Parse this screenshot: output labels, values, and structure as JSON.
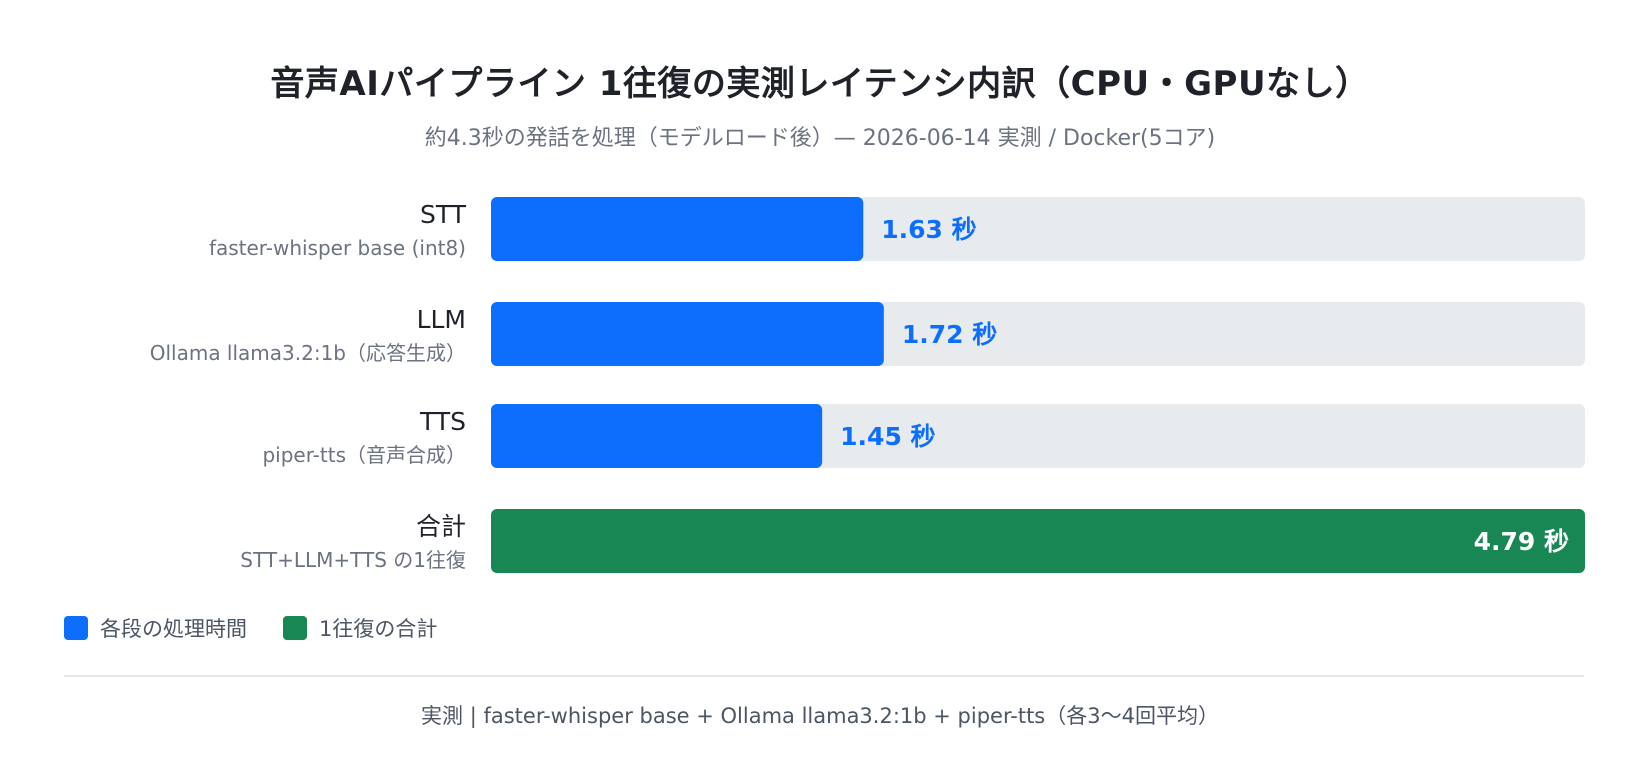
{
  "chart_data": {
    "type": "bar",
    "orientation": "horizontal",
    "title": "音声AIパイプライン 1往復の実測レイテンシ内訳（CPU・GPUなし）",
    "subtitle": "約4.3秒の発話を処理（モデルロード後）— 2026-06-14 実測 / Docker(5コア)",
    "xlim": [
      0,
      4.79
    ],
    "grid": false,
    "legend_position": "bottom-left",
    "unit": "秒",
    "categories": [
      {
        "label": "STT",
        "sublabel": "faster-whisper base (int8)"
      },
      {
        "label": "LLM",
        "sublabel": "Ollama llama3.2:1b（応答生成）"
      },
      {
        "label": "TTS",
        "sublabel": "piper-tts（音声合成）"
      },
      {
        "label": "合計",
        "sublabel": "STT+LLM+TTS の1往復"
      }
    ],
    "values": [
      1.63,
      1.72,
      1.45,
      4.79
    ],
    "value_labels": [
      "1.63 秒",
      "1.72 秒",
      "1.45 秒",
      "4.79 秒"
    ],
    "series_kind": [
      "stage",
      "stage",
      "stage",
      "total"
    ],
    "colors": {
      "stage": "#0d6efd",
      "total": "#198754",
      "track": "#e8ebee"
    }
  },
  "legend": [
    {
      "label": "各段の処理時間",
      "color": "#0d6efd"
    },
    {
      "label": "1往復の合計",
      "color": "#198754"
    }
  ],
  "footer": "実測 | faster-whisper base + Ollama llama3.2:1b + piper-tts（各3〜4回平均）"
}
